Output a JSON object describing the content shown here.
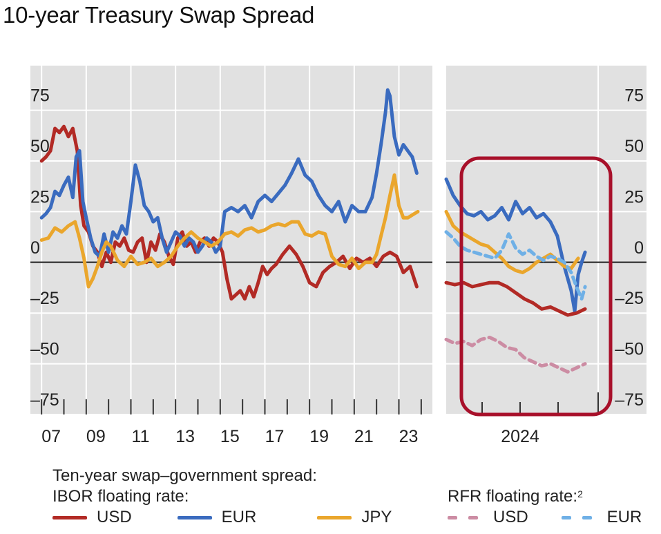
{
  "title": "10-year Treasury Swap Spread",
  "legend": {
    "heading": "Ten-year swap–government spread:",
    "ibor_label": "IBOR floating rate:",
    "rfr_label": "RFR floating rate:",
    "rfr_footnote": "2",
    "ibor_items": [
      {
        "name": "USD",
        "color": "#b22a25"
      },
      {
        "name": "EUR",
        "color": "#3a6bbf"
      },
      {
        "name": "JPY",
        "color": "#eaa62c"
      }
    ],
    "rfr_items": [
      {
        "name": "USD",
        "color": "#cc8ca3"
      },
      {
        "name": "EUR",
        "color": "#6fb0e6"
      }
    ]
  },
  "highlight_box_color": "#a8102a",
  "chart_data": [
    {
      "type": "line",
      "panel": "left",
      "title": "",
      "xlabel": "",
      "ylabel": "",
      "ylim": [
        -75,
        97
      ],
      "yticks": [
        75,
        50,
        25,
        0,
        -25,
        -50,
        -75
      ],
      "ytick_labels": [
        "75",
        "50",
        "25",
        "0",
        "–25",
        "–50",
        "–75"
      ],
      "xlim": [
        2006.5,
        2024.5
      ],
      "xtick_labels": [
        "07",
        "09",
        "11",
        "13",
        "15",
        "17",
        "19",
        "21",
        "23"
      ],
      "xtick_positions": [
        2007,
        2009,
        2011,
        2013,
        2015,
        2017,
        2019,
        2021,
        2023
      ],
      "grid": true,
      "zero_line": true,
      "series": [
        {
          "name": "USD (IBOR)",
          "color": "#b22a25",
          "x": [
            2007.0,
            2007.2,
            2007.4,
            2007.6,
            2007.8,
            2008.0,
            2008.2,
            2008.4,
            2008.6,
            2008.75,
            2008.9,
            2009.1,
            2009.3,
            2009.5,
            2009.7,
            2009.9,
            2010.1,
            2010.3,
            2010.5,
            2010.7,
            2010.9,
            2011.1,
            2011.3,
            2011.5,
            2011.7,
            2011.9,
            2012.1,
            2012.3,
            2012.5,
            2012.7,
            2012.9,
            2013.1,
            2013.3,
            2013.5,
            2013.7,
            2013.9,
            2014.1,
            2014.3,
            2014.5,
            2014.7,
            2014.9,
            2015.1,
            2015.3,
            2015.5,
            2015.7,
            2015.9,
            2016.1,
            2016.3,
            2016.5,
            2016.7,
            2016.9,
            2017.1,
            2017.3,
            2017.5,
            2017.8,
            2018.1,
            2018.4,
            2018.7,
            2019.0,
            2019.3,
            2019.6,
            2019.9,
            2020.2,
            2020.5,
            2020.8,
            2021.1,
            2021.4,
            2021.7,
            2022.0,
            2022.3,
            2022.6,
            2022.9,
            2023.2,
            2023.5,
            2023.8
          ],
          "values": [
            50,
            52,
            55,
            66,
            64,
            67,
            62,
            66,
            55,
            28,
            18,
            15,
            8,
            5,
            -2,
            5,
            0,
            10,
            8,
            12,
            6,
            5,
            10,
            12,
            0,
            10,
            6,
            14,
            10,
            3,
            -1,
            12,
            15,
            8,
            10,
            5,
            10,
            12,
            8,
            12,
            10,
            5,
            -8,
            -18,
            -16,
            -14,
            -18,
            -12,
            -17,
            -10,
            -2,
            -6,
            -3,
            -1,
            4,
            8,
            4,
            -2,
            -10,
            -12,
            -5,
            -2,
            0,
            3,
            -3,
            2,
            0,
            2,
            -2,
            3,
            5,
            3,
            -5,
            -2,
            -12
          ]
        },
        {
          "name": "EUR (IBOR)",
          "color": "#3a6bbf",
          "x": [
            2007.0,
            2007.2,
            2007.4,
            2007.6,
            2007.8,
            2008.0,
            2008.2,
            2008.4,
            2008.55,
            2008.7,
            2008.85,
            2009.0,
            2009.2,
            2009.4,
            2009.6,
            2009.8,
            2010.0,
            2010.2,
            2010.4,
            2010.6,
            2010.8,
            2011.0,
            2011.2,
            2011.4,
            2011.6,
            2011.8,
            2012.0,
            2012.2,
            2012.4,
            2012.6,
            2012.8,
            2013.0,
            2013.2,
            2013.4,
            2013.6,
            2013.8,
            2014.0,
            2014.2,
            2014.4,
            2014.6,
            2014.8,
            2015.0,
            2015.2,
            2015.5,
            2015.8,
            2016.1,
            2016.4,
            2016.7,
            2017.0,
            2017.3,
            2017.6,
            2017.9,
            2018.2,
            2018.5,
            2018.8,
            2019.1,
            2019.4,
            2019.7,
            2020.0,
            2020.3,
            2020.6,
            2020.9,
            2021.2,
            2021.5,
            2021.8,
            2022.0,
            2022.2,
            2022.4,
            2022.5,
            2022.6,
            2022.8,
            2023.0,
            2023.2,
            2023.4,
            2023.6,
            2023.8
          ],
          "values": [
            22,
            24,
            27,
            35,
            33,
            38,
            42,
            32,
            52,
            55,
            30,
            22,
            12,
            5,
            3,
            14,
            5,
            15,
            12,
            18,
            14,
            30,
            48,
            40,
            28,
            25,
            20,
            22,
            12,
            5,
            10,
            15,
            13,
            8,
            12,
            10,
            5,
            8,
            12,
            10,
            5,
            8,
            25,
            27,
            25,
            28,
            22,
            30,
            33,
            30,
            34,
            38,
            44,
            51,
            43,
            40,
            33,
            28,
            25,
            30,
            20,
            28,
            25,
            25,
            32,
            44,
            58,
            74,
            85,
            82,
            62,
            53,
            58,
            55,
            52,
            44
          ]
        },
        {
          "name": "JPY (IBOR)",
          "color": "#eaa62c",
          "x": [
            2007.0,
            2007.3,
            2007.6,
            2007.9,
            2008.2,
            2008.5,
            2008.7,
            2008.9,
            2009.1,
            2009.3,
            2009.5,
            2009.7,
            2009.9,
            2010.1,
            2010.4,
            2010.7,
            2011.0,
            2011.3,
            2011.6,
            2011.9,
            2012.2,
            2012.5,
            2012.8,
            2013.1,
            2013.4,
            2013.7,
            2014.0,
            2014.3,
            2014.6,
            2014.9,
            2015.2,
            2015.5,
            2015.8,
            2016.1,
            2016.4,
            2016.7,
            2017.0,
            2017.3,
            2017.6,
            2017.9,
            2018.2,
            2018.5,
            2018.8,
            2019.1,
            2019.4,
            2019.7,
            2020.0,
            2020.3,
            2020.6,
            2020.9,
            2021.2,
            2021.5,
            2021.8,
            2022.0,
            2022.2,
            2022.4,
            2022.6,
            2022.8,
            2023.0,
            2023.2,
            2023.4,
            2023.7,
            2023.85
          ],
          "values": [
            11,
            12,
            17,
            15,
            18,
            20,
            12,
            2,
            -12,
            -8,
            -2,
            5,
            10,
            8,
            1,
            -2,
            3,
            -1,
            0,
            2,
            -2,
            0,
            3,
            8,
            12,
            15,
            12,
            10,
            8,
            10,
            14,
            15,
            13,
            16,
            17,
            15,
            16,
            18,
            19,
            18,
            20,
            20,
            14,
            13,
            15,
            14,
            3,
            -1,
            -2,
            2,
            -3,
            0,
            0,
            4,
            13,
            22,
            33,
            43,
            28,
            22,
            22,
            24,
            25
          ]
        }
      ]
    },
    {
      "type": "line",
      "panel": "right",
      "title": "",
      "xlabel": "",
      "ylabel": "",
      "ylim": [
        -75,
        97
      ],
      "yticks": [
        75,
        50,
        25,
        0,
        -25,
        -50,
        -75
      ],
      "ytick_labels": [
        "75",
        "50",
        "25",
        "0",
        "–25",
        "–50",
        "–75"
      ],
      "xlim": [
        2023.5,
        2025.25
      ],
      "xtick_labels": [
        "2024"
      ],
      "xtick_positions": [
        2024.5
      ],
      "grid": true,
      "zero_line": true,
      "series": [
        {
          "name": "EUR (IBOR)",
          "color": "#3a6bbf",
          "style": "solid",
          "x": [
            2023.5,
            2023.58,
            2023.66,
            2023.74,
            2023.82,
            2023.9,
            2023.98,
            2024.06,
            2024.14,
            2024.22,
            2024.3,
            2024.38,
            2024.46,
            2024.54,
            2024.62,
            2024.7,
            2024.78,
            2024.86,
            2024.94,
            2024.98,
            2025.02,
            2025.06,
            2025.1
          ],
          "values": [
            41,
            33,
            28,
            24,
            23,
            25,
            21,
            23,
            27,
            21,
            30,
            24,
            27,
            22,
            24,
            20,
            13,
            -2,
            -14,
            -24,
            -6,
            0,
            5
          ]
        },
        {
          "name": "JPY (IBOR)",
          "color": "#eaa62c",
          "style": "solid",
          "x": [
            2023.5,
            2023.58,
            2023.66,
            2023.74,
            2023.82,
            2023.9,
            2023.98,
            2024.06,
            2024.14,
            2024.22,
            2024.3,
            2024.38,
            2024.46,
            2024.54,
            2024.62,
            2024.7,
            2024.78,
            2024.86,
            2024.94,
            2025.02
          ],
          "values": [
            25,
            18,
            15,
            13,
            11,
            9,
            8,
            5,
            2,
            -2,
            -4,
            -5,
            -3,
            0,
            2,
            4,
            1,
            -2,
            -3,
            2
          ]
        },
        {
          "name": "EUR (RFR)",
          "color": "#6fb0e6",
          "style": "dashed",
          "x": [
            2023.5,
            2023.58,
            2023.66,
            2023.74,
            2023.82,
            2023.9,
            2023.98,
            2024.06,
            2024.14,
            2024.22,
            2024.3,
            2024.38,
            2024.46,
            2024.54,
            2024.62,
            2024.7,
            2024.78,
            2024.86,
            2024.94,
            2025.0,
            2025.06,
            2025.1
          ],
          "values": [
            15,
            12,
            8,
            6,
            5,
            4,
            3,
            2,
            6,
            14,
            7,
            4,
            6,
            3,
            1,
            3,
            2,
            0,
            -5,
            -12,
            -18,
            -12
          ]
        },
        {
          "name": "USD (IBOR)",
          "color": "#b22a25",
          "style": "solid",
          "x": [
            2023.5,
            2023.6,
            2023.7,
            2023.8,
            2023.9,
            2024.0,
            2024.1,
            2024.2,
            2024.3,
            2024.4,
            2024.5,
            2024.6,
            2024.7,
            2024.8,
            2024.9,
            2025.0,
            2025.1
          ],
          "values": [
            -10,
            -11,
            -10,
            -12,
            -11,
            -10,
            -10,
            -12,
            -15,
            -18,
            -20,
            -23,
            -22,
            -24,
            -26,
            -25,
            -23
          ]
        },
        {
          "name": "USD (RFR)",
          "color": "#cc8ca3",
          "style": "dashed",
          "x": [
            2023.5,
            2023.6,
            2023.7,
            2023.8,
            2023.9,
            2024.0,
            2024.1,
            2024.2,
            2024.3,
            2024.4,
            2024.5,
            2024.6,
            2024.7,
            2024.8,
            2024.9,
            2025.0,
            2025.1
          ],
          "values": [
            -38,
            -40,
            -39,
            -41,
            -38,
            -37,
            -39,
            -42,
            -43,
            -47,
            -49,
            -51,
            -50,
            -52,
            -54,
            -52,
            -50
          ]
        }
      ]
    }
  ]
}
